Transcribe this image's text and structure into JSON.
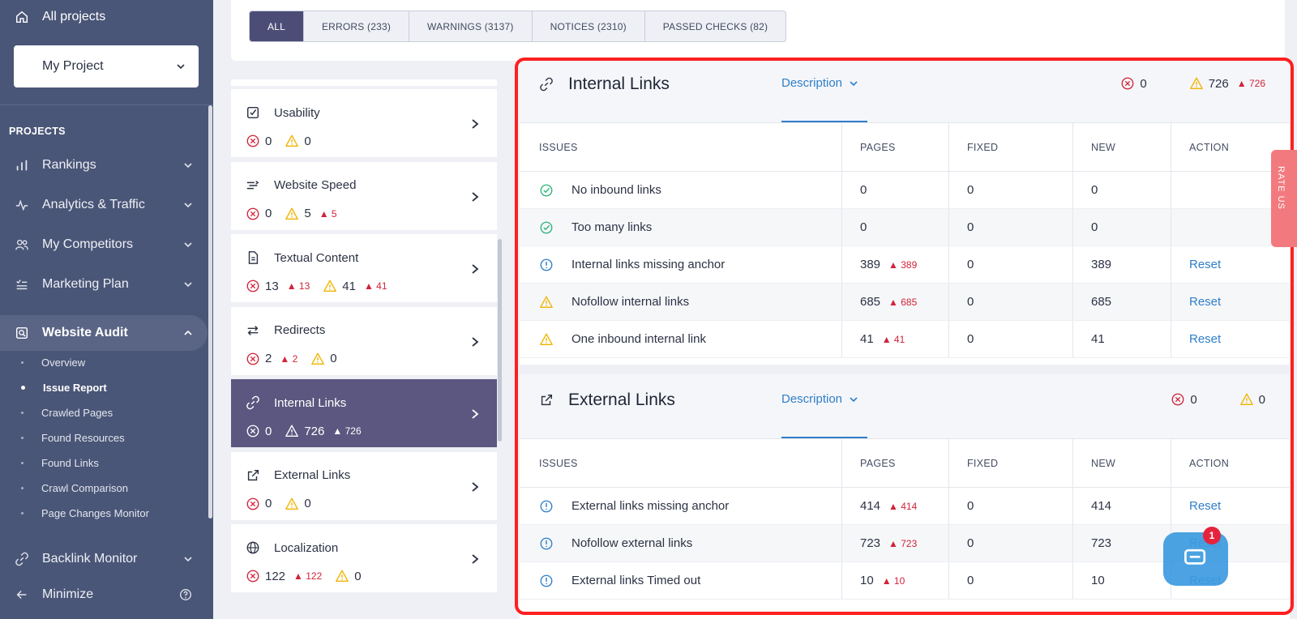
{
  "sidebar": {
    "all_projects": "All projects",
    "project": "My Project",
    "projects_heading": "PROJECTS",
    "items": [
      {
        "label": "Rankings",
        "icon": "bar-chart-icon"
      },
      {
        "label": "Analytics & Traffic",
        "icon": "pulse-icon"
      },
      {
        "label": "My Competitors",
        "icon": "users-icon"
      },
      {
        "label": "Marketing Plan",
        "icon": "checklist-icon"
      },
      {
        "label": "Website Audit",
        "icon": "audit-icon"
      }
    ],
    "subitems": [
      "Overview",
      "Issue Report",
      "Crawled Pages",
      "Found Resources",
      "Found Links",
      "Crawl Comparison",
      "Page Changes Monitor"
    ],
    "current_subitem": "Issue Report",
    "backlink_monitor": "Backlink Monitor",
    "minimize": "Minimize"
  },
  "filters": {
    "tabs": [
      "ALL",
      "ERRORS (233)",
      "WARNINGS (3137)",
      "NOTICES (2310)",
      "PASSED CHECKS (82)"
    ],
    "active": "ALL"
  },
  "categories": [
    {
      "title": "Usability",
      "icon": "checkbox-icon",
      "errors": "0",
      "errors_new": "",
      "warnings": "0",
      "warnings_new": ""
    },
    {
      "title": "Website Speed",
      "icon": "speed-icon",
      "errors": "0",
      "errors_new": "",
      "warnings": "5",
      "warnings_new": "5"
    },
    {
      "title": "Textual Content",
      "icon": "document-icon",
      "errors": "13",
      "errors_new": "13",
      "warnings": "41",
      "warnings_new": "41"
    },
    {
      "title": "Redirects",
      "icon": "redirect-icon",
      "errors": "2",
      "errors_new": "2",
      "warnings": "0",
      "warnings_new": ""
    },
    {
      "title": "Internal Links",
      "icon": "link-icon",
      "errors": "0",
      "errors_new": "",
      "warnings": "726",
      "warnings_new": "726"
    },
    {
      "title": "External Links",
      "icon": "external-link-icon",
      "errors": "0",
      "errors_new": "",
      "warnings": "0",
      "warnings_new": ""
    },
    {
      "title": "Localization",
      "icon": "globe-icon",
      "errors": "122",
      "errors_new": "122",
      "warnings": "0",
      "warnings_new": ""
    }
  ],
  "columns": [
    "ISSUES",
    "PAGES",
    "FIXED",
    "NEW",
    "ACTION"
  ],
  "internal": {
    "title": "Internal Links",
    "description": "Description",
    "errors": "0",
    "warnings": "726",
    "warnings_new": "726",
    "rows": [
      {
        "status": "passed",
        "issue": "No inbound links",
        "pages": "0",
        "pages_new": "",
        "fixed": "0",
        "new": "0",
        "action": ""
      },
      {
        "status": "passed",
        "issue": "Too many links",
        "pages": "0",
        "pages_new": "",
        "fixed": "0",
        "new": "0",
        "action": ""
      },
      {
        "status": "notice",
        "issue": "Internal links missing anchor",
        "pages": "389",
        "pages_new": "389",
        "fixed": "0",
        "new": "389",
        "action": "Reset"
      },
      {
        "status": "warning",
        "issue": "Nofollow internal links",
        "pages": "685",
        "pages_new": "685",
        "fixed": "0",
        "new": "685",
        "action": "Reset"
      },
      {
        "status": "warning",
        "issue": "One inbound internal link",
        "pages": "41",
        "pages_new": "41",
        "fixed": "0",
        "new": "41",
        "action": "Reset"
      }
    ]
  },
  "external": {
    "title": "External Links",
    "description": "Description",
    "errors": "0",
    "warnings": "0",
    "rows": [
      {
        "status": "notice",
        "issue": "External links missing anchor",
        "pages": "414",
        "pages_new": "414",
        "fixed": "0",
        "new": "414",
        "action": "Reset"
      },
      {
        "status": "notice",
        "issue": "Nofollow external links",
        "pages": "723",
        "pages_new": "723",
        "fixed": "0",
        "new": "723",
        "action": "Reset"
      },
      {
        "status": "notice",
        "issue": "External links Timed out",
        "pages": "10",
        "pages_new": "10",
        "fixed": "0",
        "new": "10",
        "action": "Reset"
      }
    ]
  },
  "rate_us": "RATE US",
  "chat_badge": "1",
  "colors": {
    "sidebar": "#4a5677",
    "active_category": "#5b5780",
    "error": "#d0243a",
    "warning": "#f0b400",
    "notice": "#2f7fc9",
    "passed": "#2fb37a",
    "link": "#2f7fc9"
  }
}
